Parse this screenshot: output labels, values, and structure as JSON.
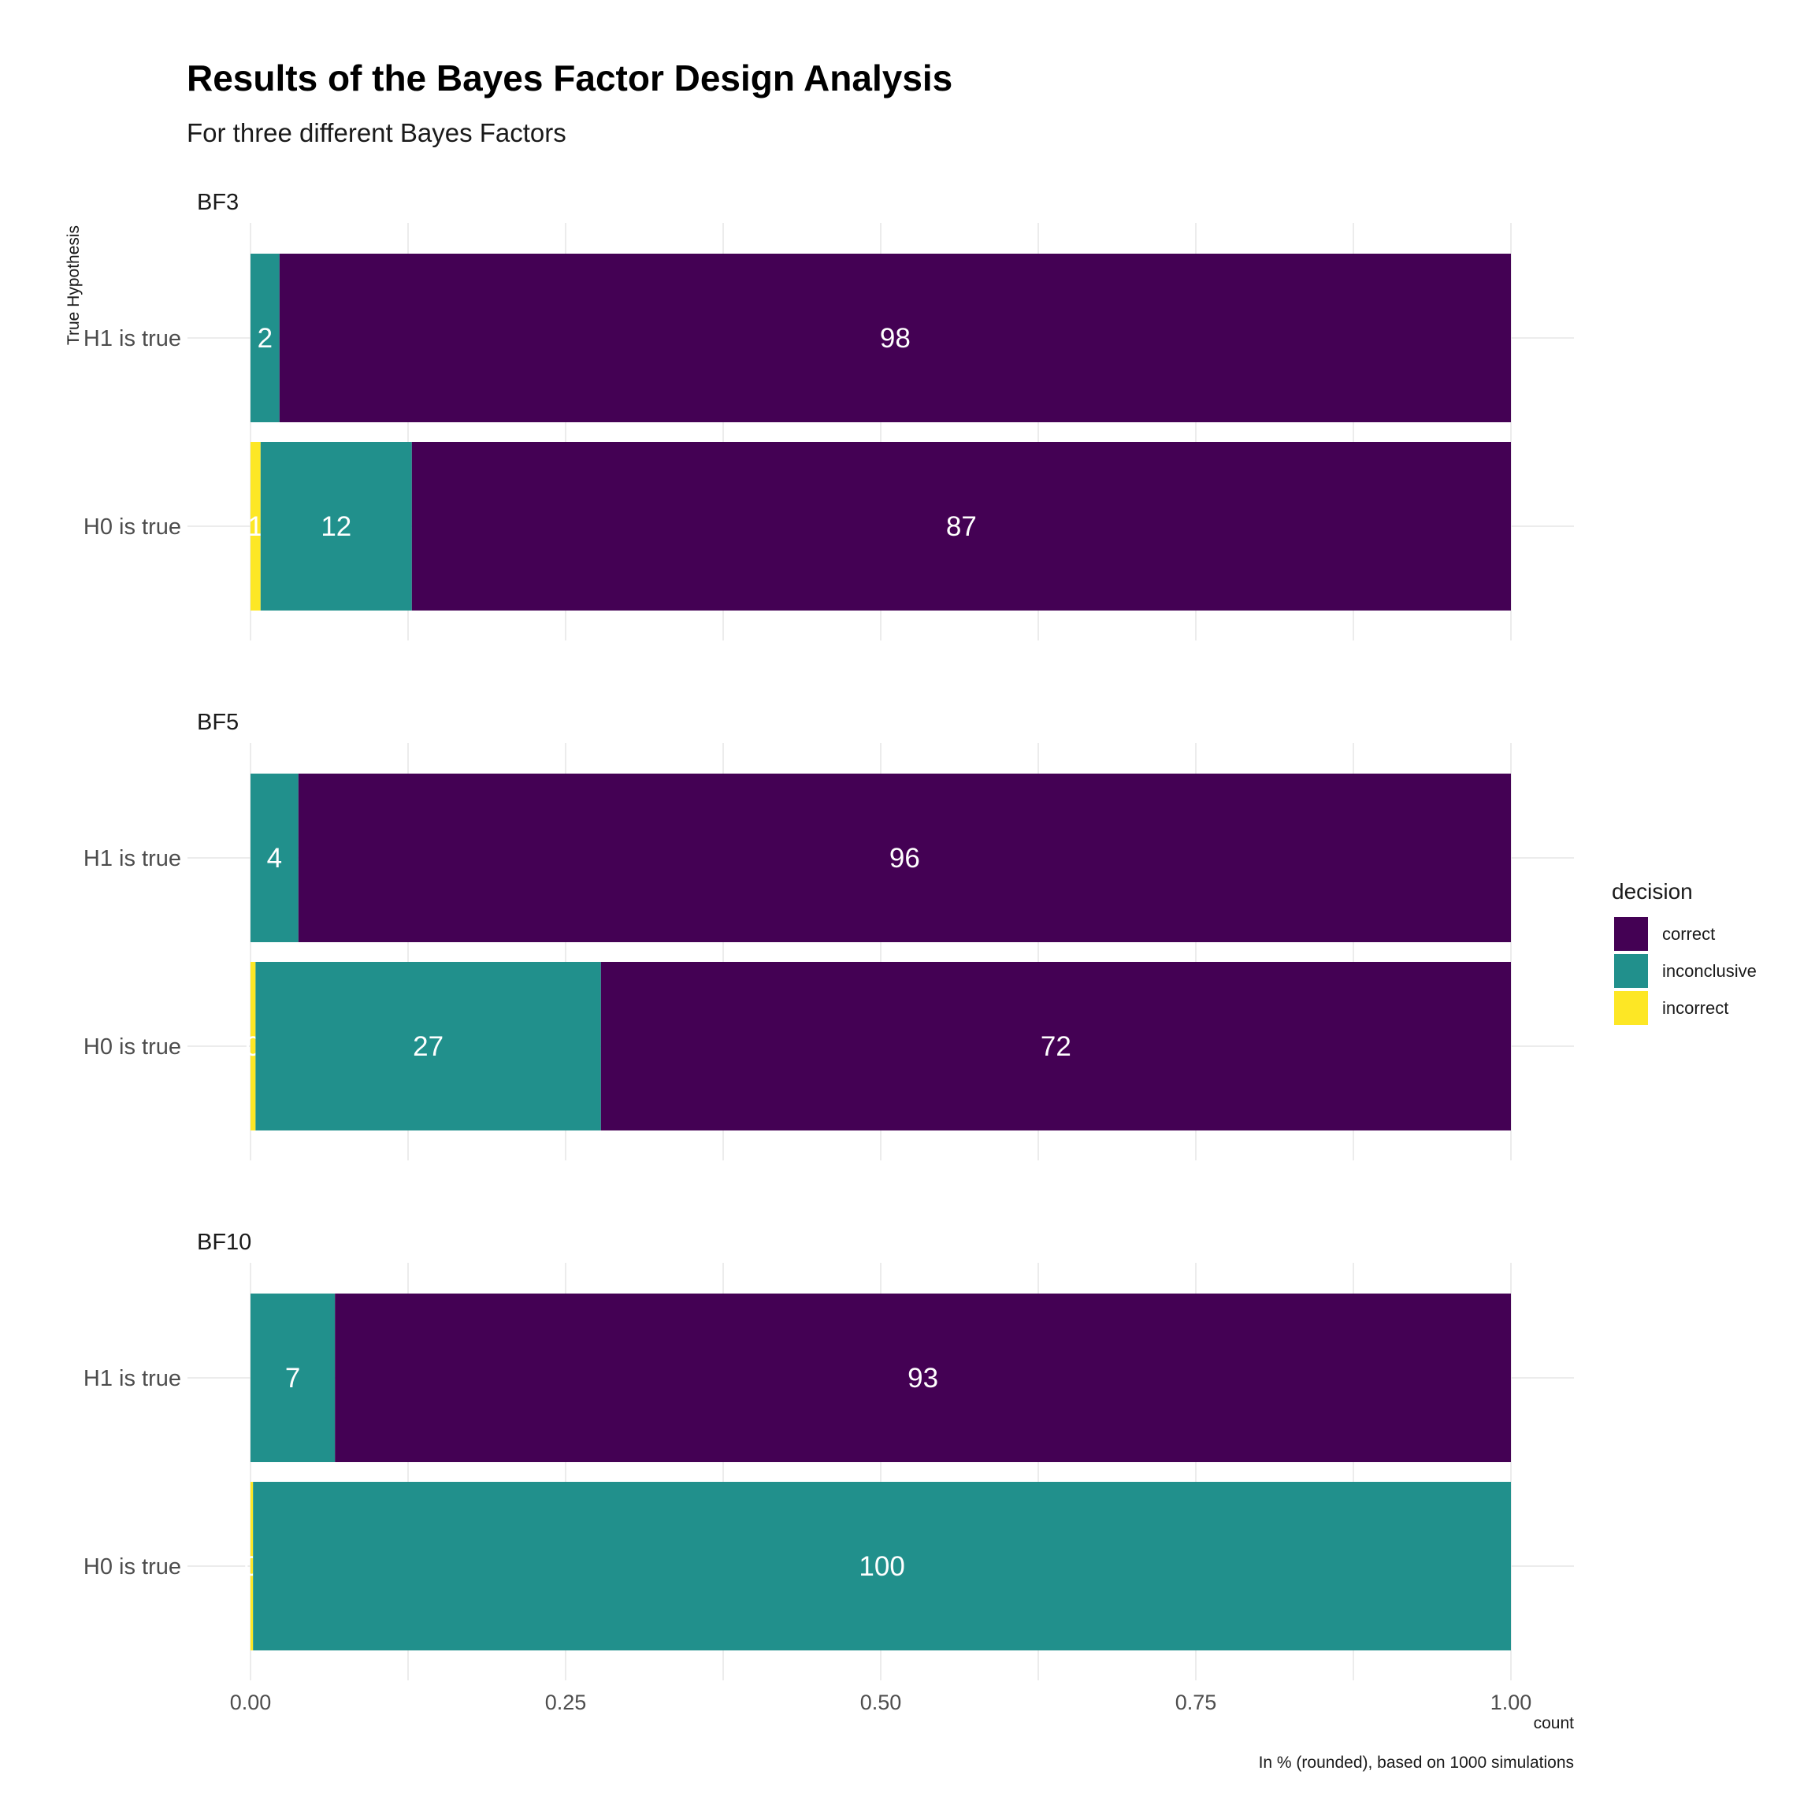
{
  "chart_data": {
    "type": "bar",
    "orientation": "horizontal",
    "stacked": true,
    "title": "Results of the Bayes Factor Design Analysis",
    "subtitle": "For three different Bayes Factors",
    "xlabel": "count",
    "ylabel": "True Hypothesis",
    "caption": "In % (rounded), based on 1000 simulations",
    "xlim": [
      0,
      1
    ],
    "xticks": [
      "0.00",
      "0.25",
      "0.50",
      "0.75",
      "1.00"
    ],
    "grid": true,
    "legend": {
      "title": "decision",
      "placement": "right",
      "entries": [
        {
          "name": "correct",
          "color": "#440154"
        },
        {
          "name": "inconclusive",
          "color": "#21908C"
        },
        {
          "name": "incorrect",
          "color": "#FDE725"
        }
      ]
    },
    "panels": [
      {
        "name": "BF3",
        "categories": [
          "H1 is true",
          "H0 is true"
        ],
        "series": [
          {
            "name": "incorrect",
            "values": [
              0.0,
              0.008
            ],
            "labels": [
              "",
              "1"
            ]
          },
          {
            "name": "inconclusive",
            "values": [
              0.023,
              0.12
            ],
            "labels": [
              "2",
              "12"
            ]
          },
          {
            "name": "correct",
            "values": [
              0.977,
              0.872
            ],
            "labels": [
              "98",
              "87"
            ]
          }
        ]
      },
      {
        "name": "BF5",
        "categories": [
          "H1 is true",
          "H0 is true"
        ],
        "series": [
          {
            "name": "incorrect",
            "values": [
              0.0,
              0.004
            ],
            "labels": [
              "",
              "0"
            ]
          },
          {
            "name": "inconclusive",
            "values": [
              0.038,
              0.274
            ],
            "labels": [
              "4",
              "27"
            ]
          },
          {
            "name": "correct",
            "values": [
              0.962,
              0.722
            ],
            "labels": [
              "96",
              "72"
            ]
          }
        ]
      },
      {
        "name": "BF10",
        "categories": [
          "H1 is true",
          "H0 is true"
        ],
        "series": [
          {
            "name": "incorrect",
            "values": [
              0.0,
              0.002
            ],
            "labels": [
              "",
              "0"
            ]
          },
          {
            "name": "inconclusive",
            "values": [
              0.067,
              0.998
            ],
            "labels": [
              "7",
              "100"
            ]
          },
          {
            "name": "correct",
            "values": [
              0.933,
              0.0
            ],
            "labels": [
              "93",
              ""
            ]
          }
        ]
      }
    ]
  }
}
